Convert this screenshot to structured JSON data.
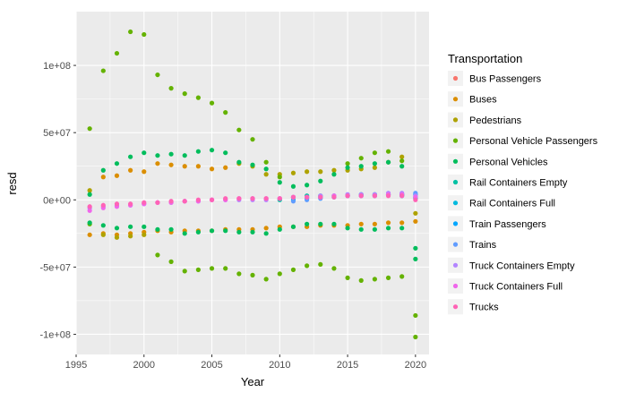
{
  "chart_data": {
    "type": "scatter",
    "xlabel": "Year",
    "ylabel": "resd",
    "xlim": [
      1995,
      2021
    ],
    "ylim": [
      -115000000,
      140000000
    ],
    "x_ticks": [
      1995,
      2000,
      2005,
      2010,
      2015,
      2020
    ],
    "x_tick_labels": [
      "1995",
      "2000",
      "2005",
      "2010",
      "2015",
      "2020"
    ],
    "y_ticks": [
      -100000000,
      -50000000,
      0,
      50000000,
      100000000
    ],
    "y_tick_labels": [
      "-1e+08",
      "-5e+07",
      "0e+00",
      "5e+07",
      "1e+08"
    ],
    "grid": true,
    "legend": {
      "title": "Transportation",
      "placement": "right"
    },
    "series": [
      {
        "name": "Bus Passengers",
        "color": "#F8766D",
        "points": []
      },
      {
        "name": "Buses",
        "color": "#DB8E00",
        "points": [
          [
            1996,
            -26000000
          ],
          [
            1997,
            17000000
          ],
          [
            1997,
            -25000000
          ],
          [
            1998,
            18000000
          ],
          [
            1998,
            -26000000
          ],
          [
            1999,
            22000000
          ],
          [
            1999,
            -25000000
          ],
          [
            2000,
            21000000
          ],
          [
            2000,
            -24000000
          ],
          [
            2001,
            27000000
          ],
          [
            2001,
            -23000000
          ],
          [
            2002,
            26000000
          ],
          [
            2002,
            -24000000
          ],
          [
            2003,
            25000000
          ],
          [
            2003,
            -23000000
          ],
          [
            2004,
            25000000
          ],
          [
            2004,
            -23000000
          ],
          [
            2005,
            23000000
          ],
          [
            2005,
            -23000000
          ],
          [
            2006,
            24000000
          ],
          [
            2006,
            -22000000
          ],
          [
            2007,
            -22000000
          ],
          [
            2008,
            -22000000
          ],
          [
            2009,
            -21000000
          ],
          [
            2010,
            -20000000
          ],
          [
            2011,
            -20000000
          ],
          [
            2012,
            -20000000
          ],
          [
            2013,
            -19000000
          ],
          [
            2014,
            -19000000
          ],
          [
            2015,
            -19000000
          ],
          [
            2016,
            -18000000
          ],
          [
            2017,
            -18000000
          ],
          [
            2018,
            -17000000
          ],
          [
            2019,
            -17000000
          ],
          [
            2020,
            -16000000
          ]
        ]
      },
      {
        "name": "Pedestrians",
        "color": "#AEA200",
        "points": [
          [
            1996,
            7000000
          ],
          [
            1997,
            -26000000
          ],
          [
            1998,
            -28000000
          ],
          [
            1999,
            -27000000
          ],
          [
            2000,
            -26000000
          ],
          [
            2007,
            27000000
          ],
          [
            2008,
            25000000
          ],
          [
            2009,
            19000000
          ],
          [
            2010,
            19000000
          ],
          [
            2011,
            20000000
          ],
          [
            2012,
            21000000
          ],
          [
            2013,
            21000000
          ],
          [
            2014,
            22000000
          ],
          [
            2015,
            22000000
          ],
          [
            2016,
            23000000
          ],
          [
            2017,
            24000000
          ],
          [
            2018,
            28000000
          ],
          [
            2019,
            32000000
          ],
          [
            2020,
            -10000000
          ]
        ]
      },
      {
        "name": "Personal Vehicle Passengers",
        "color": "#64B200",
        "points": [
          [
            1996,
            53000000
          ],
          [
            1996,
            -18000000
          ],
          [
            1997,
            96000000
          ],
          [
            1998,
            109000000
          ],
          [
            1999,
            125000000
          ],
          [
            2000,
            123000000
          ],
          [
            2001,
            93000000
          ],
          [
            2001,
            -41000000
          ],
          [
            2002,
            83000000
          ],
          [
            2002,
            -46000000
          ],
          [
            2003,
            79000000
          ],
          [
            2003,
            -53000000
          ],
          [
            2004,
            76000000
          ],
          [
            2004,
            -52000000
          ],
          [
            2005,
            72000000
          ],
          [
            2005,
            -51000000
          ],
          [
            2006,
            65000000
          ],
          [
            2006,
            -51000000
          ],
          [
            2007,
            52000000
          ],
          [
            2007,
            -55000000
          ],
          [
            2008,
            45000000
          ],
          [
            2008,
            -56000000
          ],
          [
            2009,
            28000000
          ],
          [
            2009,
            -59000000
          ],
          [
            2010,
            17000000
          ],
          [
            2010,
            -55000000
          ],
          [
            2011,
            -52000000
          ],
          [
            2012,
            -49000000
          ],
          [
            2013,
            -48000000
          ],
          [
            2014,
            -51000000
          ],
          [
            2015,
            -58000000
          ],
          [
            2015,
            27000000
          ],
          [
            2016,
            -60000000
          ],
          [
            2016,
            31000000
          ],
          [
            2017,
            -59000000
          ],
          [
            2017,
            35000000
          ],
          [
            2018,
            -58000000
          ],
          [
            2018,
            36000000
          ],
          [
            2019,
            -57000000
          ],
          [
            2019,
            29000000
          ],
          [
            2020,
            -86000000
          ],
          [
            2020,
            -102000000
          ]
        ]
      },
      {
        "name": "Personal Vehicles",
        "color": "#00BD5C",
        "points": [
          [
            1996,
            4000000
          ],
          [
            1996,
            -17000000
          ],
          [
            1997,
            22000000
          ],
          [
            1997,
            -19000000
          ],
          [
            1998,
            27000000
          ],
          [
            1998,
            -21000000
          ],
          [
            1999,
            32000000
          ],
          [
            1999,
            -20000000
          ],
          [
            2000,
            35000000
          ],
          [
            2000,
            -20000000
          ],
          [
            2001,
            33000000
          ],
          [
            2001,
            -22000000
          ],
          [
            2002,
            34000000
          ],
          [
            2002,
            -22000000
          ],
          [
            2003,
            33000000
          ],
          [
            2003,
            -25000000
          ],
          [
            2004,
            36000000
          ],
          [
            2004,
            -24000000
          ],
          [
            2005,
            37000000
          ],
          [
            2005,
            -23000000
          ],
          [
            2006,
            35000000
          ],
          [
            2006,
            -23000000
          ],
          [
            2007,
            28000000
          ],
          [
            2007,
            -24000000
          ],
          [
            2008,
            26000000
          ],
          [
            2008,
            -24000000
          ],
          [
            2009,
            23000000
          ],
          [
            2009,
            -25000000
          ],
          [
            2010,
            13000000
          ],
          [
            2010,
            -22000000
          ],
          [
            2011,
            10000000
          ],
          [
            2011,
            -20000000
          ],
          [
            2012,
            11000000
          ],
          [
            2012,
            -18000000
          ],
          [
            2013,
            14000000
          ],
          [
            2013,
            -18000000
          ],
          [
            2014,
            19000000
          ],
          [
            2014,
            -18000000
          ],
          [
            2015,
            24000000
          ],
          [
            2015,
            -21000000
          ],
          [
            2016,
            25000000
          ],
          [
            2016,
            -22000000
          ],
          [
            2017,
            27000000
          ],
          [
            2017,
            -22000000
          ],
          [
            2018,
            28000000
          ],
          [
            2018,
            -21000000
          ],
          [
            2019,
            25000000
          ],
          [
            2019,
            -21000000
          ],
          [
            2020,
            -36000000
          ],
          [
            2020,
            -44000000
          ]
        ]
      },
      {
        "name": "Rail Containers Empty",
        "color": "#00C1A3",
        "points": [
          [
            2010,
            0
          ],
          [
            2011,
            2000000
          ],
          [
            2012,
            3000000
          ],
          [
            2013,
            3000000
          ],
          [
            2014,
            3000000
          ],
          [
            2015,
            3000000
          ],
          [
            2016,
            4000000
          ],
          [
            2017,
            4000000
          ],
          [
            2018,
            4000000
          ],
          [
            2019,
            4000000
          ],
          [
            2020,
            2000000
          ]
        ]
      },
      {
        "name": "Rail Containers Full",
        "color": "#00BADE",
        "points": [
          [
            2011,
            0
          ],
          [
            2012,
            1000000
          ],
          [
            2013,
            2000000
          ],
          [
            2014,
            2000000
          ],
          [
            2015,
            3000000
          ],
          [
            2016,
            3000000
          ],
          [
            2017,
            3000000
          ],
          [
            2018,
            4000000
          ],
          [
            2019,
            4000000
          ],
          [
            2020,
            1000000
          ]
        ]
      },
      {
        "name": "Train Passengers",
        "color": "#00A6FF",
        "points": [
          [
            2019,
            3000000
          ],
          [
            2020,
            4000000
          ]
        ]
      },
      {
        "name": "Trains",
        "color": "#619CFF",
        "points": [
          [
            2011,
            -1000000
          ],
          [
            2012,
            0
          ],
          [
            2013,
            1000000
          ],
          [
            2020,
            5000000
          ]
        ]
      },
      {
        "name": "Truck Containers Empty",
        "color": "#B385FF",
        "points": [
          [
            1996,
            -6000000
          ],
          [
            1997,
            -5000000
          ],
          [
            1998,
            -4000000
          ],
          [
            1999,
            -4000000
          ],
          [
            2000,
            -3000000
          ],
          [
            2001,
            -2000000
          ],
          [
            2002,
            -2000000
          ],
          [
            2003,
            -1000000
          ],
          [
            2004,
            -1000000
          ],
          [
            2005,
            0
          ],
          [
            2006,
            0
          ],
          [
            2007,
            0
          ],
          [
            2008,
            0
          ],
          [
            2009,
            0
          ],
          [
            2010,
            1000000
          ],
          [
            2011,
            2000000
          ],
          [
            2012,
            2000000
          ],
          [
            2013,
            3000000
          ],
          [
            2014,
            3000000
          ],
          [
            2015,
            4000000
          ],
          [
            2016,
            4000000
          ],
          [
            2017,
            4000000
          ],
          [
            2018,
            5000000
          ],
          [
            2019,
            5000000
          ],
          [
            2020,
            3000000
          ]
        ]
      },
      {
        "name": "Truck Containers Full",
        "color": "#EF67EB",
        "points": [
          [
            1996,
            -8000000
          ],
          [
            1997,
            -6000000
          ],
          [
            1998,
            -5000000
          ],
          [
            1999,
            -4000000
          ],
          [
            2000,
            -3000000
          ],
          [
            2001,
            -2000000
          ],
          [
            2002,
            -2000000
          ],
          [
            2003,
            -1000000
          ],
          [
            2004,
            -1000000
          ],
          [
            2005,
            0
          ],
          [
            2006,
            0
          ],
          [
            2007,
            1000000
          ],
          [
            2008,
            1000000
          ],
          [
            2009,
            1000000
          ],
          [
            2010,
            1000000
          ],
          [
            2011,
            2000000
          ],
          [
            2012,
            2000000
          ],
          [
            2013,
            2000000
          ],
          [
            2014,
            3000000
          ],
          [
            2015,
            3000000
          ],
          [
            2016,
            3000000
          ],
          [
            2017,
            3000000
          ],
          [
            2018,
            4000000
          ],
          [
            2019,
            4000000
          ],
          [
            2020,
            2000000
          ]
        ]
      },
      {
        "name": "Trucks",
        "color": "#FF63B6",
        "points": [
          [
            1996,
            -5000000
          ],
          [
            1997,
            -4000000
          ],
          [
            1998,
            -3000000
          ],
          [
            1999,
            -3000000
          ],
          [
            2000,
            -2000000
          ],
          [
            2001,
            -2000000
          ],
          [
            2002,
            -1000000
          ],
          [
            2003,
            -1000000
          ],
          [
            2004,
            0
          ],
          [
            2005,
            0
          ],
          [
            2006,
            1000000
          ],
          [
            2007,
            1000000
          ],
          [
            2008,
            1000000
          ],
          [
            2009,
            1000000
          ],
          [
            2010,
            1000000
          ],
          [
            2011,
            2000000
          ],
          [
            2012,
            2000000
          ],
          [
            2013,
            2000000
          ],
          [
            2014,
            2000000
          ],
          [
            2015,
            3000000
          ],
          [
            2016,
            3000000
          ],
          [
            2017,
            3000000
          ],
          [
            2018,
            3000000
          ],
          [
            2019,
            3000000
          ],
          [
            2020,
            0
          ]
        ]
      }
    ]
  }
}
